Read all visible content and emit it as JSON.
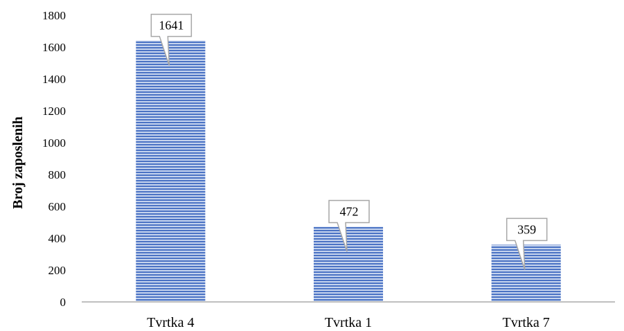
{
  "chart_data": {
    "type": "bar",
    "categories": [
      "Tvrtka 4",
      "Tvrtka 1",
      "Tvrtka 7"
    ],
    "values": [
      1641,
      472,
      359
    ],
    "data_labels": [
      "1641",
      "472",
      "359"
    ],
    "title": "",
    "xlabel": "",
    "ylabel": "Broj zaposlenih",
    "ylim": [
      0,
      1800
    ],
    "yticks": [
      0,
      200,
      400,
      600,
      800,
      1000,
      1200,
      1400,
      1600,
      1800
    ],
    "grid": false,
    "bar_color": "#4a72c4",
    "bar_stripe_color": "#c6d4ee"
  }
}
